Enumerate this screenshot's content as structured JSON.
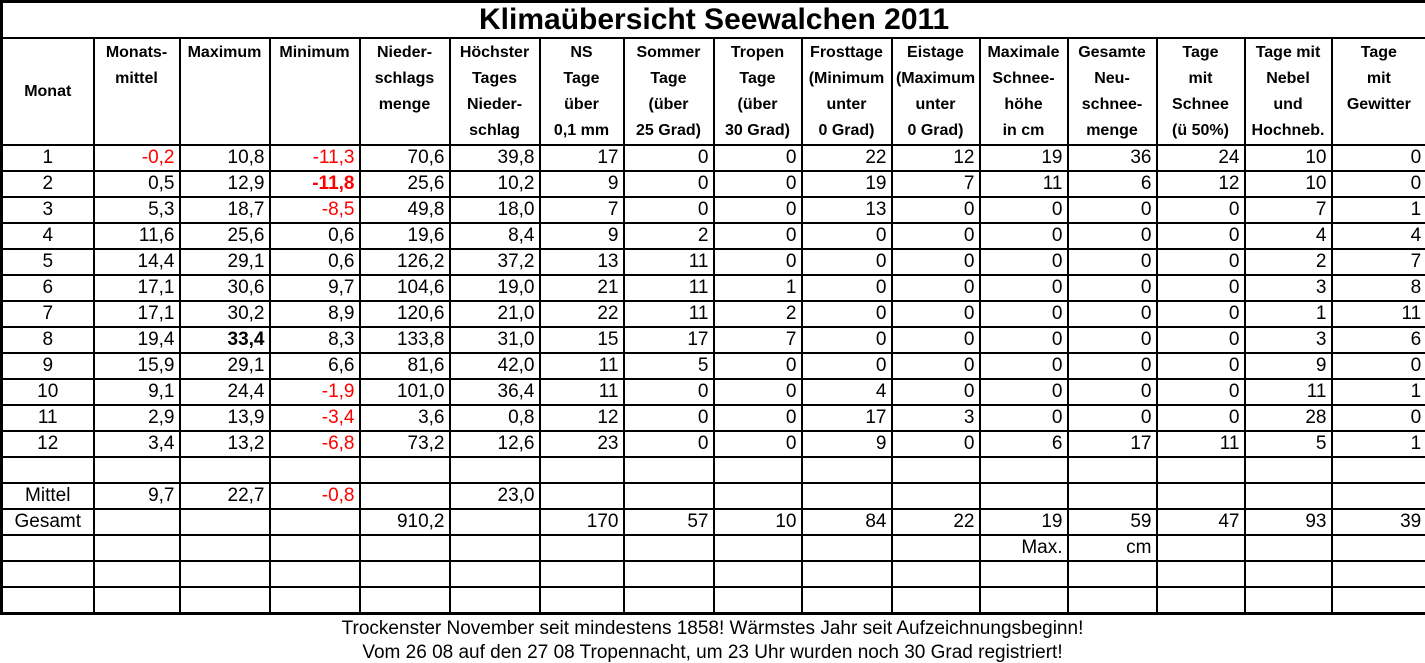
{
  "title": "Klimaübersicht Seewalchen 2011",
  "colors": {
    "negative_value": "#ff0000",
    "border": "#000000",
    "background": "#ffffff",
    "text": "#000000"
  },
  "table": {
    "columns": [
      {
        "id": "monat",
        "width": 92,
        "header_lines": [
          "Monat"
        ]
      },
      {
        "id": "monatsmittel",
        "width": 86,
        "header_lines": [
          "Monats-",
          "mittel"
        ]
      },
      {
        "id": "maximum",
        "width": 90,
        "header_lines": [
          "Maximum"
        ]
      },
      {
        "id": "minimum",
        "width": 90,
        "header_lines": [
          "Minimum"
        ]
      },
      {
        "id": "niederschlagsmenge",
        "width": 90,
        "header_lines": [
          "Nieder-",
          "schlags",
          "menge"
        ]
      },
      {
        "id": "hoechster-tagesniederschlag",
        "width": 90,
        "header_lines": [
          "Höchster",
          "Tages",
          "Nieder-",
          "schlag"
        ]
      },
      {
        "id": "ns-tage",
        "width": 84,
        "header_lines": [
          "NS",
          "Tage",
          "über",
          "0,1 mm"
        ]
      },
      {
        "id": "sommertage",
        "width": 90,
        "header_lines": [
          "Sommer",
          "Tage",
          "(über",
          "25 Grad)"
        ]
      },
      {
        "id": "tropentage",
        "width": 88,
        "header_lines": [
          "Tropen",
          "Tage",
          "(über",
          "30 Grad)"
        ]
      },
      {
        "id": "frosttage",
        "width": 90,
        "header_lines": [
          "Frosttage",
          "(Minimum",
          "unter",
          "0 Grad)"
        ]
      },
      {
        "id": "eistage",
        "width": 88,
        "header_lines": [
          "Eistage",
          "(Maximum",
          "unter",
          "0 Grad)"
        ]
      },
      {
        "id": "maximale-schneehoehe",
        "width": 88,
        "header_lines": [
          "Maximale",
          "Schnee-",
          "höhe",
          "in cm"
        ]
      },
      {
        "id": "gesamte-neuschneemenge",
        "width": 89,
        "header_lines": [
          "Gesamte",
          "Neu-",
          "schnee-",
          "menge"
        ]
      },
      {
        "id": "tage-mit-schnee",
        "width": 88,
        "header_lines": [
          "Tage",
          "mit",
          "Schnee",
          "(ü 50%)"
        ]
      },
      {
        "id": "tage-mit-nebel",
        "width": 87,
        "header_lines": [
          "Tage mit",
          "Nebel",
          "und",
          "Hochneb."
        ]
      },
      {
        "id": "tage-mit-gewitter",
        "width": 95,
        "header_lines": [
          "Tage",
          "mit",
          "Gewitter"
        ]
      }
    ],
    "rows": [
      [
        "1",
        "-0,2",
        "10,8",
        "-11,3",
        "70,6",
        "39,8",
        "17",
        "0",
        "0",
        "22",
        "12",
        "19",
        "36",
        "24",
        "10",
        "0"
      ],
      [
        "2",
        "0,5",
        "12,9",
        "-11,8",
        "25,6",
        "10,2",
        "9",
        "0",
        "0",
        "19",
        "7",
        "11",
        "6",
        "12",
        "10",
        "0"
      ],
      [
        "3",
        "5,3",
        "18,7",
        "-8,5",
        "49,8",
        "18,0",
        "7",
        "0",
        "0",
        "13",
        "0",
        "0",
        "0",
        "0",
        "7",
        "1"
      ],
      [
        "4",
        "11,6",
        "25,6",
        "0,6",
        "19,6",
        "8,4",
        "9",
        "2",
        "0",
        "0",
        "0",
        "0",
        "0",
        "0",
        "4",
        "4"
      ],
      [
        "5",
        "14,4",
        "29,1",
        "0,6",
        "126,2",
        "37,2",
        "13",
        "11",
        "0",
        "0",
        "0",
        "0",
        "0",
        "0",
        "2",
        "7"
      ],
      [
        "6",
        "17,1",
        "30,6",
        "9,7",
        "104,6",
        "19,0",
        "21",
        "11",
        "1",
        "0",
        "0",
        "0",
        "0",
        "0",
        "3",
        "8"
      ],
      [
        "7",
        "17,1",
        "30,2",
        "8,9",
        "120,6",
        "21,0",
        "22",
        "11",
        "2",
        "0",
        "0",
        "0",
        "0",
        "0",
        "1",
        "11"
      ],
      [
        "8",
        "19,4",
        "33,4",
        "8,3",
        "133,8",
        "31,0",
        "15",
        "17",
        "7",
        "0",
        "0",
        "0",
        "0",
        "0",
        "3",
        "6"
      ],
      [
        "9",
        "15,9",
        "29,1",
        "6,6",
        "81,6",
        "42,0",
        "11",
        "5",
        "0",
        "0",
        "0",
        "0",
        "0",
        "0",
        "9",
        "0"
      ],
      [
        "10",
        "9,1",
        "24,4",
        "-1,9",
        "101,0",
        "36,4",
        "11",
        "0",
        "0",
        "4",
        "0",
        "0",
        "0",
        "0",
        "11",
        "1"
      ],
      [
        "11",
        "2,9",
        "13,9",
        "-3,4",
        "3,6",
        "0,8",
        "12",
        "0",
        "0",
        "17",
        "3",
        "0",
        "0",
        "0",
        "28",
        "0"
      ],
      [
        "12",
        "3,4",
        "13,2",
        "-6,8",
        "73,2",
        "12,6",
        "23",
        "0",
        "0",
        "9",
        "0",
        "6",
        "17",
        "11",
        "5",
        "1"
      ],
      [
        "",
        "",
        "",
        "",
        "",
        "",
        "",
        "",
        "",
        "",
        "",
        "",
        "",
        "",
        "",
        ""
      ],
      [
        "Mittel",
        "9,7",
        "22,7",
        "-0,8",
        "",
        "23,0",
        "",
        "",
        "",
        "",
        "",
        "",
        "",
        "",
        "",
        ""
      ],
      [
        "Gesamt",
        "",
        "",
        "",
        "910,2",
        "",
        "170",
        "57",
        "10",
        "84",
        "22",
        "19",
        "59",
        "47",
        "93",
        "39"
      ],
      [
        "",
        "",
        "",
        "",
        "",
        "",
        "",
        "",
        "",
        "",
        "",
        "Max.",
        "cm",
        "",
        "",
        ""
      ],
      [
        "",
        "",
        "",
        "",
        "",
        "",
        "",
        "",
        "",
        "",
        "",
        "",
        "",
        "",
        "",
        ""
      ],
      [
        "",
        "",
        "",
        "",
        "",
        "",
        "",
        "",
        "",
        "",
        "",
        "",
        "",
        "",
        "",
        ""
      ]
    ],
    "bold_cells": [
      {
        "row": 1,
        "col": 3
      },
      {
        "row": 7,
        "col": 2
      }
    ]
  },
  "footer": {
    "line1": "Trockenster November seit mindestens 1858! Wärmstes Jahr seit Aufzeichnungsbeginn!",
    "line2": "Vom 26 08 auf den 27 08 Tropennacht, um 23 Uhr wurden noch 30 Grad registriert!"
  }
}
